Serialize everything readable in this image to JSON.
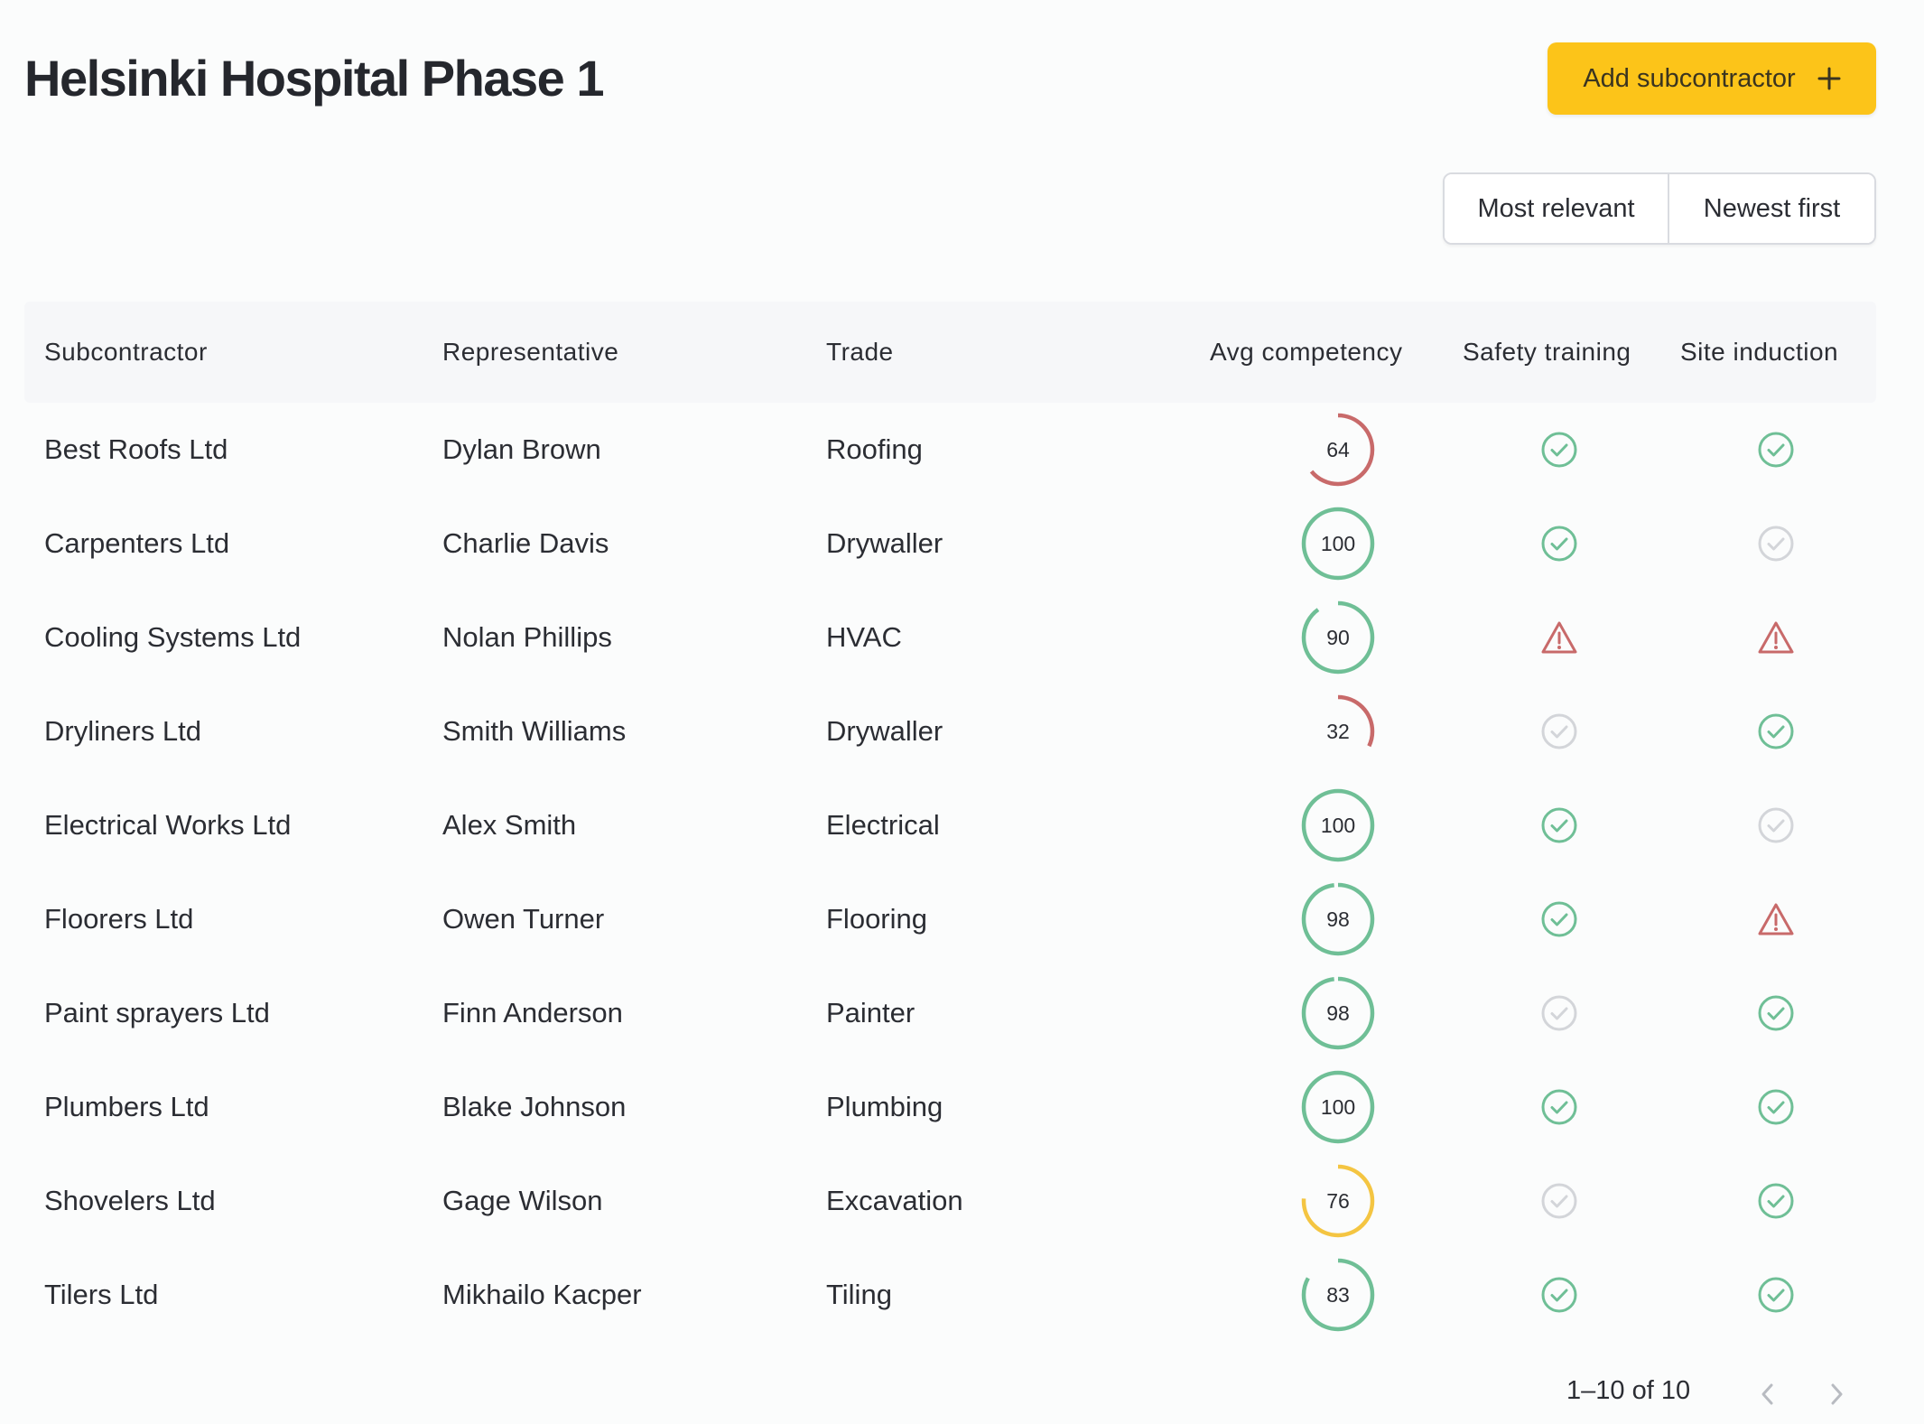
{
  "header": {
    "title": "Helsinki Hospital Phase 1",
    "add_button_label": "Add subcontractor"
  },
  "sort": {
    "options": [
      "Most relevant",
      "Newest first"
    ]
  },
  "colors": {
    "accent": "#fcc419",
    "good": "#6fbf96",
    "bad": "#c86a6a",
    "warn": "#f4c542",
    "neutral": "#d3d5d9"
  },
  "table": {
    "columns": [
      "Subcontractor",
      "Representative",
      "Trade",
      "Avg competency",
      "Safety training",
      "Site induction"
    ],
    "rows": [
      {
        "subcontractor": "Best Roofs Ltd",
        "representative": "Dylan Brown",
        "trade": "Roofing",
        "competency": 64,
        "safety": "done",
        "induction": "done"
      },
      {
        "subcontractor": "Carpenters Ltd",
        "representative": "Charlie Davis",
        "trade": "Drywaller",
        "competency": 100,
        "safety": "done",
        "induction": "pending"
      },
      {
        "subcontractor": "Cooling Systems Ltd",
        "representative": "Nolan Phillips",
        "trade": "HVAC",
        "competency": 90,
        "safety": "warning",
        "induction": "warning"
      },
      {
        "subcontractor": "Dryliners Ltd",
        "representative": "Smith Williams",
        "trade": "Drywaller",
        "competency": 32,
        "safety": "pending",
        "induction": "done"
      },
      {
        "subcontractor": "Electrical Works Ltd",
        "representative": "Alex Smith",
        "trade": "Electrical",
        "competency": 100,
        "safety": "done",
        "induction": "pending"
      },
      {
        "subcontractor": "Floorers Ltd",
        "representative": "Owen Turner",
        "trade": "Flooring",
        "competency": 98,
        "safety": "done",
        "induction": "warning"
      },
      {
        "subcontractor": "Paint sprayers Ltd",
        "representative": "Finn Anderson",
        "trade": "Painter",
        "competency": 98,
        "safety": "pending",
        "induction": "done"
      },
      {
        "subcontractor": "Plumbers Ltd",
        "representative": "Blake Johnson",
        "trade": "Plumbing",
        "competency": 100,
        "safety": "done",
        "induction": "done"
      },
      {
        "subcontractor": "Shovelers Ltd",
        "representative": "Gage Wilson",
        "trade": "Excavation",
        "competency": 76,
        "safety": "pending",
        "induction": "done"
      },
      {
        "subcontractor": "Tilers Ltd",
        "representative": "Mikhailo Kacper",
        "trade": "Tiling",
        "competency": 83,
        "safety": "done",
        "induction": "done"
      }
    ]
  },
  "pagination": {
    "label": "1–10 of 10"
  }
}
